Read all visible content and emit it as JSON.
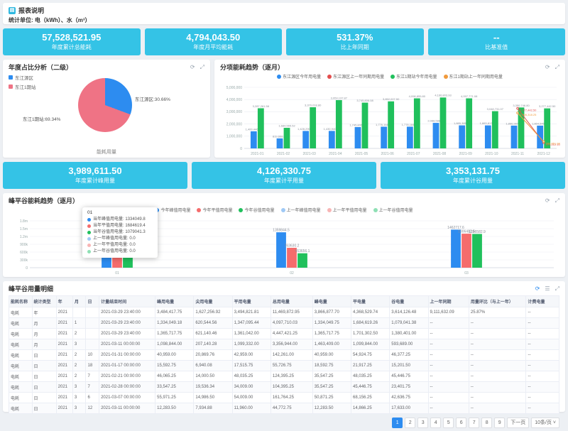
{
  "header": {
    "title": "报表说明",
    "unit_text": "统计单位: 电（kWh）、水（m³）"
  },
  "icons": {
    "refresh": "⟳",
    "expand": "⤢",
    "columns": "☰",
    "caret": "˅"
  },
  "colors": {
    "kpi_bg": "#34c3e6",
    "blue": "#2d8cf0",
    "green": "#20c05c",
    "pink": "#f56c6c",
    "pie_pink": "#ef7385",
    "red_line": "#e34d4d",
    "orange_line": "#f09a3c",
    "active_page": "#2d8cf0"
  },
  "kpis": [
    {
      "value": "57,528,521.95",
      "label": "年度累计总能耗"
    },
    {
      "value": "4,794,043.50",
      "label": "年度月平均能耗"
    },
    {
      "value": "531.37%",
      "label": "比上年同期"
    },
    {
      "value": "--",
      "label": "比基准值"
    },
    {
      "value": "3,989,611.50",
      "label": "年度累计峰用量"
    },
    {
      "value": "4,126,330.75",
      "label": "年度累计平用量"
    },
    {
      "value": "3,353,131.75",
      "label": "年度累计谷用量"
    }
  ],
  "chart_data": [
    {
      "type": "pie",
      "title": "年度占比分析（二级）",
      "caption": "能耗用量",
      "legend_position": "top-left",
      "slices": [
        {
          "name": "东江源区",
          "value_pct": 30.66,
          "color": "#2d8cf0"
        },
        {
          "name": "东江1期站",
          "value_pct": 69.34,
          "color": "#ef7385"
        }
      ]
    },
    {
      "type": "bar",
      "title": "分项能耗趋势（逐月）",
      "ylim": [
        0,
        5000000
      ],
      "yticks": [
        "0",
        "1,000,000",
        "2,000,000",
        "3,000,000",
        "4,000,000",
        "5,000,000"
      ],
      "label_format": "thousands",
      "categories": [
        "2021-01",
        "2021-02",
        "2021-03",
        "2021-04",
        "2021-05",
        "2021-06",
        "2021-07",
        "2021-08",
        "2021-09",
        "2021-10",
        "2021-11",
        "2021-12"
      ],
      "series": [
        {
          "name": "东江源区今年用电量",
          "kind": "bar",
          "color": "#2d8cf0",
          "values": [
            1400446.75,
            819668.07,
            1428290.33,
            1430940.5,
            1745806.08,
            1776164.5,
            1778184.5,
            2088588.25,
            1885385.75,
            1883817.75,
            1866987.38,
            1864545.13
          ]
        },
        {
          "name": "东江源区上一年同期用电量",
          "kind": "line",
          "color": "#e34d4d",
          "values": [
            0,
            0,
            0,
            0,
            0,
            0,
            0,
            0,
            0,
            0,
            3277442.5,
            474212.1
          ]
        },
        {
          "name": "东江1期站今年用电量",
          "kind": "bar",
          "color": "#20c05c",
          "values": [
            3287261.58,
            1684565.52,
            3370018.8,
            3953137.87,
            3745806.08,
            3852007.5,
            4098855.8,
            4166803.93,
            4097771.08,
            3048731.07,
            3350746.8,
            3277442.5
          ]
        },
        {
          "name": "东江1期站上一年同期用电量",
          "kind": "line",
          "color": "#f09a3c",
          "values": [
            0,
            0,
            0,
            0,
            0,
            0,
            0,
            0,
            0,
            0,
            2906318.25,
            556651.08
          ]
        }
      ]
    },
    {
      "type": "bar",
      "title": "峰平谷能耗趋势（逐月）",
      "ylim": [
        0,
        1800000
      ],
      "yticks": [
        "0",
        "300k",
        "600k",
        "900k",
        "1.2m",
        "1.5m",
        "1.8m"
      ],
      "label_format": "plain",
      "categories": [
        "01",
        "02",
        "03"
      ],
      "series": [
        {
          "name": "今年峰值用电量",
          "kind": "bar",
          "color": "#2d8cf0",
          "values": [
            1334049.8,
            1359844.5,
            1462717.6
          ]
        },
        {
          "name": "今年平值用电量",
          "kind": "bar",
          "color": "#f56c6c",
          "values": [
            1684619.4,
            763630.2,
            1306482.5
          ]
        },
        {
          "name": "今年谷值用电量",
          "kind": "bar",
          "color": "#20c05c",
          "values": [
            1079041.3,
            553656.1,
            1296582.9
          ]
        },
        {
          "name": "上一年峰值用电量",
          "kind": "line",
          "color": "#9fc9f5",
          "values": [
            0,
            0,
            0
          ]
        },
        {
          "name": "上一年平值用电量",
          "kind": "line",
          "color": "#f8b5b5",
          "values": [
            0,
            0,
            0
          ]
        },
        {
          "name": "上一年谷值用电量",
          "kind": "line",
          "color": "#8fe0b5",
          "values": [
            0,
            0,
            0
          ]
        }
      ],
      "tooltip": {
        "title": "01",
        "rows": [
          {
            "label": "当年峰值用电量",
            "value": "1334049.8",
            "color": "#2d8cf0"
          },
          {
            "label": "当年平值用电量",
            "value": "1684619.4",
            "color": "#f56c6c"
          },
          {
            "label": "当年谷值用电量",
            "value": "1079041.3",
            "color": "#20c05c"
          },
          {
            "label": "上一年峰值用电量",
            "value": "0.0",
            "color": "#9fc9f5"
          },
          {
            "label": "上一年平值用电量",
            "value": "0.0",
            "color": "#f8b5b5"
          },
          {
            "label": "上一年谷值用电量",
            "value": "0.0",
            "color": "#8fe0b5"
          }
        ]
      }
    }
  ],
  "table": {
    "title": "峰平谷用量明细",
    "columns": [
      "能耗名称",
      "统计类型",
      "年",
      "月",
      "日",
      "计量结束时间",
      "峰用电量",
      "尖用电量",
      "平用电量",
      "总用电量",
      "峰电量",
      "平电量",
      "谷电量",
      "上一年同期",
      "用量环比（与上一年）",
      "计费电量"
    ],
    "rows": [
      [
        "电耗",
        "年",
        "2021",
        "",
        "",
        "2021-03-29 23:40:00",
        "3,484,417.75",
        "1,627,256.92",
        "3,494,821.81",
        "11,469,872.95",
        "3,866,877.70",
        "4,368,529.74",
        "3,614,126.48",
        "9,111,632.09",
        "25.87%",
        "--"
      ],
      [
        "电耗",
        "月",
        "2021",
        "1",
        "",
        "2021-03-29 23:40:00",
        "1,334,049.18",
        "620,544.56",
        "1,347,095.44",
        "4,097,710.03",
        "1,334,049.75",
        "1,684,619.26",
        "1,079,041.38",
        "--",
        "--",
        "--"
      ],
      [
        "电耗",
        "月",
        "2021",
        "2",
        "",
        "2021-03-29 23:40:00",
        "1,365,717.75",
        "621,140.46",
        "1,361,042.00",
        "4,447,421.25",
        "1,365,717.75",
        "1,701,302.50",
        "1,380,401.00",
        "--",
        "--",
        "--"
      ],
      [
        "电耗",
        "月",
        "2021",
        "3",
        "",
        "2021-03-11 00:00:00",
        "1,098,844.00",
        "207,140.28",
        "1,099,332.00",
        "3,356,944.00",
        "1,463,409.00",
        "1,099,844.00",
        "593,689.00",
        "--",
        "--",
        "--"
      ],
      [
        "电耗",
        "日",
        "2021",
        "2",
        "10",
        "2021-01-31 00:00:00",
        "40,959.00",
        "20,869.76",
        "42,959.00",
        "142,261.00",
        "40,959.00",
        "54,924.75",
        "46,377.25",
        "--",
        "--",
        "--"
      ],
      [
        "电耗",
        "日",
        "2021",
        "2",
        "18",
        "2021-01-17 00:00:00",
        "15,592.75",
        "6,940.08",
        "17,515.75",
        "55,726.75",
        "18,592.75",
        "21,917.25",
        "15,201.50",
        "--",
        "--",
        "--"
      ],
      [
        "电耗",
        "日",
        "2021",
        "2",
        "7",
        "2021-02-21 00:00:00",
        "46,065.25",
        "14,000.50",
        "48,035.25",
        "124,395.25",
        "35,547.25",
        "48,035.25",
        "45,446.75",
        "--",
        "--",
        "--"
      ],
      [
        "电耗",
        "日",
        "2021",
        "3",
        "7",
        "2021-02-28 00:00:00",
        "33,547.25",
        "19,536.34",
        "34,009.00",
        "104,395.25",
        "35,547.25",
        "45,446.75",
        "23,401.75",
        "--",
        "--",
        "--"
      ],
      [
        "电耗",
        "日",
        "2021",
        "3",
        "6",
        "2021-03-07 00:00:00",
        "55,971.25",
        "14,986.50",
        "54,009.00",
        "161,764.25",
        "50,871.25",
        "68,156.25",
        "42,636.75",
        "--",
        "--",
        "--"
      ],
      [
        "电耗",
        "日",
        "2021",
        "3",
        "12",
        "2021-03-11 00:00:00",
        "12,283.50",
        "7,934.88",
        "11,960.00",
        "44,772.75",
        "12,283.50",
        "14,866.25",
        "17,633.00",
        "--",
        "--",
        "--"
      ]
    ],
    "pagination": {
      "pages": [
        "1",
        "2",
        "3",
        "4",
        "5",
        "6",
        "7",
        "8",
        "9"
      ],
      "active": "1",
      "next_label": "下一页",
      "page_size_label": "10条/页"
    }
  }
}
